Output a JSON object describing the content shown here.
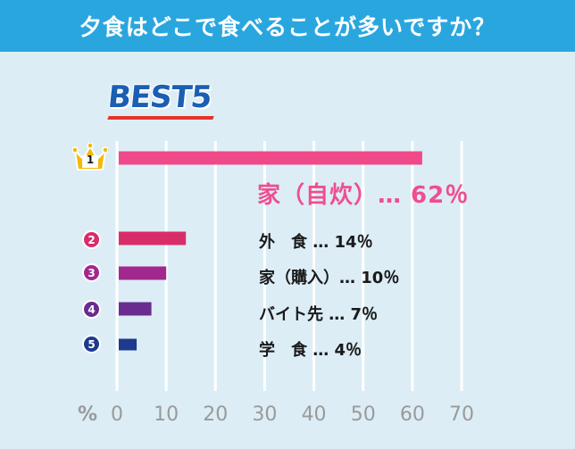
{
  "header": {
    "title": "夕食はどこで食べることが多いですか？"
  },
  "badge": {
    "text": "BEST5"
  },
  "ranks": [
    {
      "num": "1",
      "color": "#f6a800"
    },
    {
      "num": "2",
      "color": "#d92d6a"
    },
    {
      "num": "3",
      "color": "#a2288e"
    },
    {
      "num": "4",
      "color": "#6a2c91"
    },
    {
      "num": "5",
      "color": "#1d3a8f"
    }
  ],
  "labels": [
    "家（自炊）…  62％",
    "外　食 …  14％",
    "家（購入）…  10％",
    "バイト先 …  7％",
    "学　食 …  4％"
  ],
  "chart_data": {
    "type": "bar",
    "orientation": "horizontal",
    "title": "夕食はどこで食べることが多いですか？",
    "categories": [
      "家（自炊）",
      "外食",
      "家（購入）",
      "バイト先",
      "学食"
    ],
    "values": [
      62,
      14,
      10,
      7,
      4
    ],
    "colors": [
      "#f0498a",
      "#d92d6a",
      "#a2288e",
      "#6a2c91",
      "#1d3a8f"
    ],
    "xlabel": "%",
    "xlim": [
      0,
      70
    ],
    "x_ticks": [
      "0",
      "10",
      "20",
      "30",
      "40",
      "50",
      "60",
      "70"
    ],
    "grid": true
  }
}
